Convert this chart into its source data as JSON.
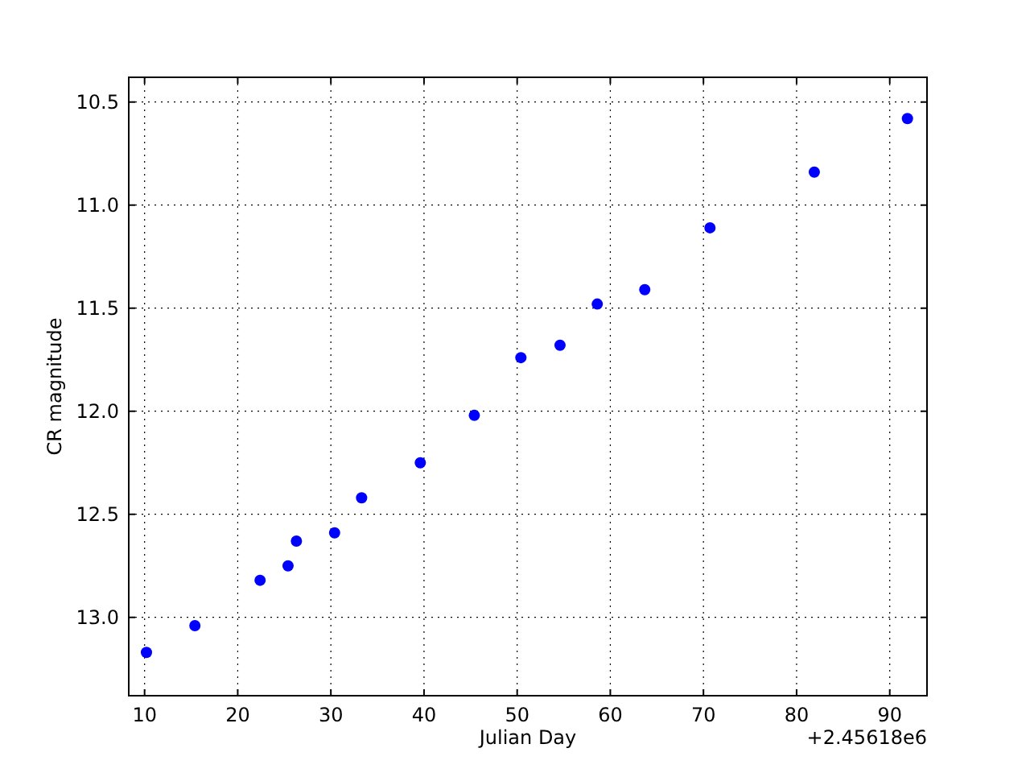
{
  "chart_data": {
    "type": "scatter",
    "xlabel": "Julian Day",
    "ylabel": "CR magnitude",
    "annotations": [
      "+2.45618e6"
    ],
    "x": [
      10.2,
      15.4,
      22.4,
      25.4,
      26.3,
      30.4,
      33.3,
      39.6,
      45.4,
      50.4,
      54.6,
      58.6,
      63.7,
      70.7,
      81.9,
      91.9
    ],
    "series": [
      {
        "color": "#0000ff",
        "values": [
          13.17,
          13.04,
          12.82,
          12.75,
          12.63,
          12.59,
          12.42,
          12.25,
          12.02,
          11.74,
          11.68,
          11.48,
          11.41,
          11.11,
          10.84,
          10.58
        ]
      }
    ],
    "xlim": [
      8.3,
      94
    ],
    "ylim": [
      13.38,
      10.38
    ],
    "xticks": [
      10,
      20,
      30,
      40,
      50,
      60,
      70,
      80,
      90
    ],
    "yticks": [
      {
        "value": 10.5,
        "label": "10.5"
      },
      {
        "value": 11,
        "label": "11.0"
      },
      {
        "value": 11.5,
        "label": "11.5"
      },
      {
        "value": 12,
        "label": "12.0"
      },
      {
        "value": 12.5,
        "label": "12.5"
      },
      {
        "value": 13,
        "label": "13.0"
      }
    ],
    "grid": true,
    "marker": "circle"
  }
}
